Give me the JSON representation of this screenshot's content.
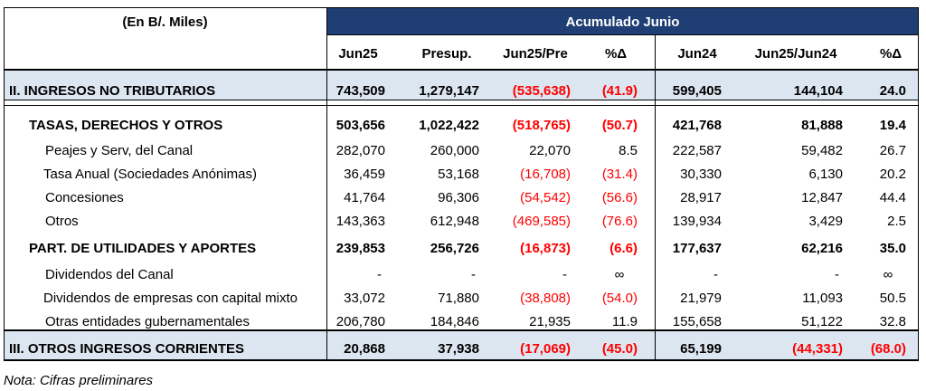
{
  "header": {
    "unit_label": "(En B/. Miles)",
    "group_label": "Acumulado Junio",
    "columns": [
      "Jun25",
      "Presup.",
      "Jun25/Pre",
      "%Δ",
      "Jun24",
      "Jun25/Jun24",
      "%Δ"
    ]
  },
  "rows": [
    {
      "label": "II. INGRESOS NO TRIBUTARIOS",
      "values": [
        "743,509",
        "1,279,147",
        "(535,638)",
        "(41.9)",
        "599,405",
        "144,104",
        "24.0"
      ]
    },
    {
      "label": "TASAS, DERECHOS Y OTROS",
      "values": [
        "503,656",
        "1,022,422",
        "(518,765)",
        "(50.7)",
        "421,768",
        "81,888",
        "19.4"
      ]
    },
    {
      "label": "Peajes y Serv, del Canal",
      "values": [
        "282,070",
        "260,000",
        "22,070",
        "8.5",
        "222,587",
        "59,482",
        "26.7"
      ]
    },
    {
      "label": "Tasa Anual (Sociedades Anónimas)",
      "values": [
        "36,459",
        "53,168",
        "(16,708)",
        "(31.4)",
        "30,330",
        "6,130",
        "20.2"
      ]
    },
    {
      "label": "Concesiones",
      "values": [
        "41,764",
        "96,306",
        "(54,542)",
        "(56.6)",
        "28,917",
        "12,847",
        "44.4"
      ]
    },
    {
      "label": "Otros",
      "values": [
        "143,363",
        "612,948",
        "(469,585)",
        "(76.6)",
        "139,934",
        "3,429",
        "2.5"
      ]
    },
    {
      "label": "PART. DE UTILIDADES Y APORTES",
      "values": [
        "239,853",
        "256,726",
        "(16,873)",
        "(6.6)",
        "177,637",
        "62,216",
        "35.0"
      ]
    },
    {
      "label": "Dividendos del Canal",
      "values": [
        "-",
        "-",
        "-",
        "∞",
        "-",
        "-",
        "∞"
      ]
    },
    {
      "label": "Dividendos de empresas con capital mixto",
      "values": [
        "33,072",
        "71,880",
        "(38,808)",
        "(54.0)",
        "21,979",
        "11,093",
        "50.5"
      ]
    },
    {
      "label": "Otras entidades gubernamentales",
      "values": [
        "206,780",
        "184,846",
        "21,935",
        "11.9",
        "155,658",
        "51,122",
        "32.8"
      ]
    },
    {
      "label": "III. OTROS INGRESOS CORRIENTES",
      "values": [
        "20,868",
        "37,938",
        "(17,069)",
        "(45.0)",
        "65,199",
        "(44,331)",
        "(68.0)"
      ]
    }
  ],
  "note": "Nota: Cifras preliminares",
  "colors": {
    "header_bg": "#1f3e73",
    "shade": "#dce6f1",
    "negative": "#ff0000"
  }
}
